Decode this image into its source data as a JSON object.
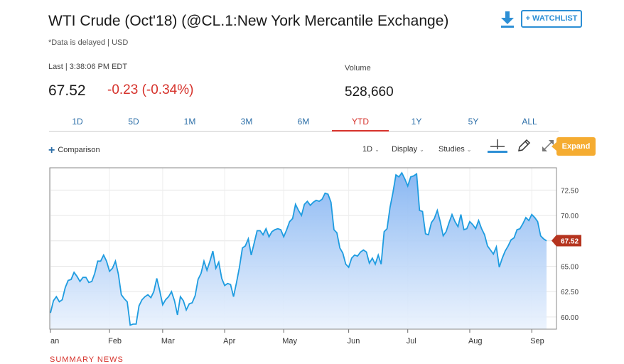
{
  "header": {
    "title": "WTI Crude (Oct'18) (@CL.1:New York Mercantile Exchange)",
    "delayed_note": "*Data is delayed | USD",
    "watchlist_label": "+ WATCHLIST",
    "download_icon": "download-icon"
  },
  "quote": {
    "last_label": "Last | 3:38:06 PM EDT",
    "price": "67.52",
    "change": "-0.23 (-0.34%)",
    "volume_label": "Volume",
    "volume_value": "528,660"
  },
  "colors": {
    "accent": "#2d8fd5",
    "negative": "#d6322b",
    "expand": "#f5ac31",
    "price_tag": "#b5341f"
  },
  "tabs": [
    {
      "label": "1D"
    },
    {
      "label": "5D"
    },
    {
      "label": "1M"
    },
    {
      "label": "3M"
    },
    {
      "label": "6M"
    },
    {
      "label": "YTD",
      "active": true
    },
    {
      "label": "1Y"
    },
    {
      "label": "5Y"
    },
    {
      "label": "ALL"
    }
  ],
  "toolbar": {
    "comparison_label": "Comparison",
    "interval_label": "1D",
    "display_label": "Display",
    "studies_label": "Studies",
    "expand_label": "Expand"
  },
  "chart_data": {
    "type": "area",
    "ylim": [
      58.8,
      74.7
    ],
    "yticks": [
      "60.00",
      "62.50",
      "65.00",
      "67.50",
      "70.00",
      "72.50"
    ],
    "ytick_values": [
      60,
      62.5,
      65,
      67.5,
      70,
      72.5
    ],
    "xticks": [
      "an",
      "Feb",
      "Mar",
      "Apr",
      "May",
      "Jun",
      "Jul",
      "Aug",
      "Sep"
    ],
    "xtick_values": [
      0,
      20,
      38,
      59,
      79,
      101,
      121,
      142,
      163
    ],
    "last_value_label": "67.52",
    "last_value": 67.52,
    "grid": true,
    "values": [
      60.4,
      61.6,
      62.0,
      61.5,
      61.7,
      62.9,
      63.6,
      63.7,
      64.4,
      64.0,
      63.5,
      63.9,
      63.9,
      63.4,
      63.5,
      64.3,
      65.5,
      65.5,
      66.1,
      65.5,
      64.5,
      64.8,
      65.5,
      64.2,
      62.2,
      61.8,
      61.5,
      59.2,
      59.3,
      59.3,
      61.1,
      61.7,
      62.0,
      62.2,
      61.9,
      62.5,
      63.8,
      62.6,
      61.2,
      61.7,
      62.0,
      62.5,
      61.6,
      60.2,
      62.0,
      61.6,
      60.7,
      61.3,
      61.4,
      62.1,
      63.7,
      64.3,
      65.5,
      64.6,
      65.5,
      66.5,
      64.8,
      65.4,
      63.8,
      63.1,
      63.3,
      63.2,
      62.0,
      63.4,
      64.9,
      66.8,
      67.0,
      67.7,
      66.1,
      67.3,
      68.5,
      68.5,
      68.1,
      68.7,
      67.9,
      68.4,
      68.6,
      68.7,
      68.6,
      67.9,
      68.6,
      69.4,
      69.7,
      71.1,
      70.5,
      70.0,
      71.1,
      71.4,
      71.0,
      71.3,
      71.5,
      71.4,
      71.6,
      72.2,
      72.1,
      71.3,
      68.6,
      68.3,
      66.8,
      66.3,
      65.2,
      64.9,
      65.8,
      66.1,
      66.0,
      66.4,
      66.6,
      66.4,
      65.3,
      65.8,
      65.2,
      66.1,
      65.2,
      68.4,
      68.7,
      70.8,
      72.3,
      74.0,
      73.8,
      74.2,
      73.6,
      72.9,
      73.8,
      73.9,
      74.1,
      70.5,
      70.4,
      68.2,
      68.1,
      69.3,
      69.7,
      70.5,
      69.4,
      68.0,
      68.4,
      69.3,
      70.1,
      69.4,
      68.9,
      70.1,
      68.6,
      68.7,
      69.4,
      69.1,
      68.7,
      69.5,
      68.7,
      68.1,
      67.0,
      66.6,
      66.2,
      66.9,
      64.9,
      65.8,
      66.5,
      67.0,
      67.6,
      67.8,
      68.6,
      68.7,
      69.2,
      69.8,
      69.5,
      70.1,
      69.8,
      69.4,
      68.0,
      67.7,
      67.5
    ]
  },
  "bottom_partial_text": "SUMMARY   NEWS"
}
